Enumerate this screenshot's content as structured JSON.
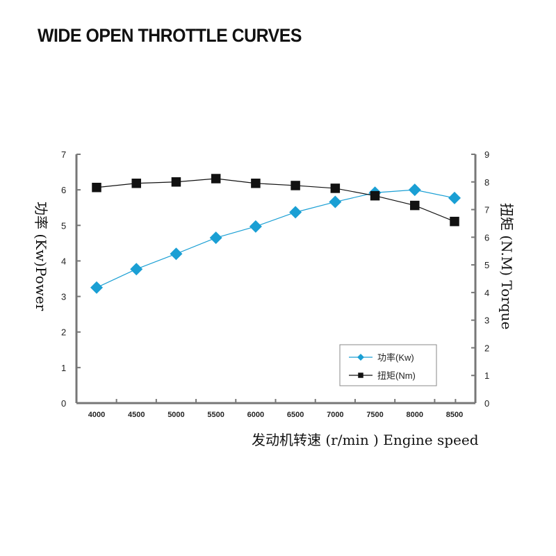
{
  "chart_data": {
    "type": "line",
    "title": "WIDE OPEN THROTTLE CURVES",
    "xlabel": "发动机转速 (r/min ) Engine speed",
    "ylabel_left": "功率 (Kw)Power",
    "ylabel_right": "扭矩 (N.M) Torque",
    "x": [
      4000,
      4500,
      5000,
      5500,
      6000,
      6500,
      7000,
      7500,
      8000,
      8500
    ],
    "ylim_left": [
      0,
      7
    ],
    "ylim_right": [
      0,
      9
    ],
    "yticks_left": [
      "0",
      "1",
      "2",
      "3",
      "4",
      "5",
      "6",
      "7"
    ],
    "yticks_right": [
      "0",
      "1",
      "2",
      "3",
      "4",
      "5",
      "6",
      "7",
      "8",
      "9"
    ],
    "grid": false,
    "legend_position": "bottom-right",
    "series": [
      {
        "name": "功率(Kw)",
        "axis": "left",
        "color": "#1a9fd4",
        "marker": "diamond",
        "values": [
          3.25,
          3.77,
          4.2,
          4.65,
          4.97,
          5.37,
          5.66,
          5.92,
          6.0,
          5.77
        ]
      },
      {
        "name": "扭矩(Nm)",
        "axis": "right",
        "color": "#111111",
        "marker": "square",
        "values": [
          7.8,
          7.95,
          8.0,
          8.12,
          7.95,
          7.87,
          7.77,
          7.5,
          7.15,
          6.57
        ]
      }
    ]
  }
}
